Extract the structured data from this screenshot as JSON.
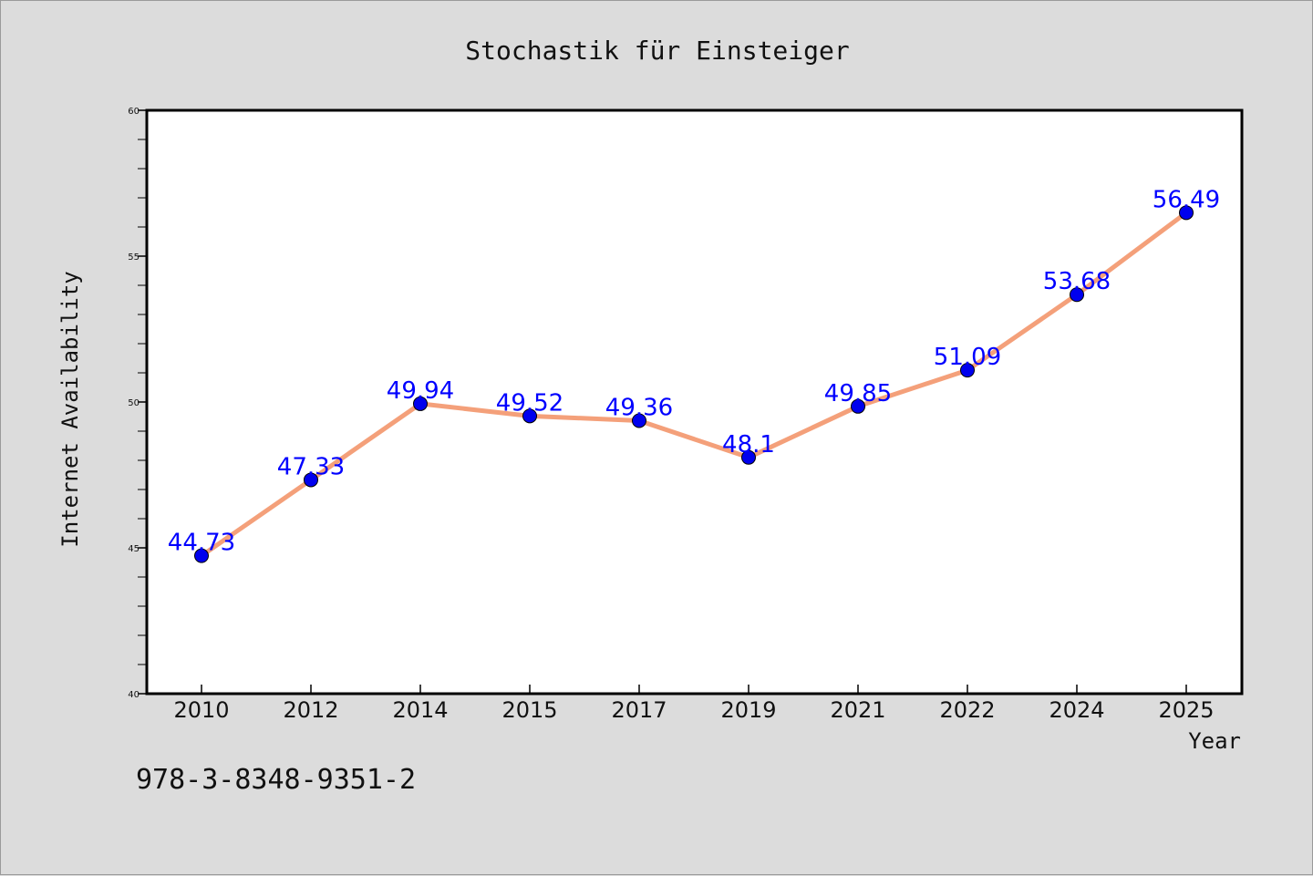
{
  "isbn": "978-3-8348-9351-2",
  "colors": {
    "background": "#dcdcdc",
    "plot_background": "#ffffff",
    "line": "#f4a07a",
    "marker": "#0000ee",
    "label": "#0000ff"
  },
  "chart_data": {
    "type": "line",
    "title": "Stochastik für Einsteiger",
    "xlabel": "Year",
    "ylabel": "Internet Availability",
    "categories": [
      "2010",
      "2012",
      "2014",
      "2015",
      "2017",
      "2019",
      "2021",
      "2022",
      "2024",
      "2025"
    ],
    "series": [
      {
        "values": [
          44.73,
          47.33,
          49.94,
          49.52,
          49.36,
          48.1,
          49.85,
          51.09,
          53.68,
          56.49
        ],
        "labels": [
          "44.73",
          "47.33",
          "49.94",
          "49.52",
          "49.36",
          "48.1",
          "49.85",
          "51.09",
          "53.68",
          "56.49"
        ]
      }
    ],
    "ylim": [
      40,
      60
    ],
    "yticks": [
      40,
      45,
      50,
      55,
      60
    ],
    "yticks_labels": [
      "40",
      "45",
      "50",
      "55",
      "60"
    ],
    "y_minor_step": 1,
    "grid": false,
    "legend": "none",
    "marker": "circle"
  }
}
